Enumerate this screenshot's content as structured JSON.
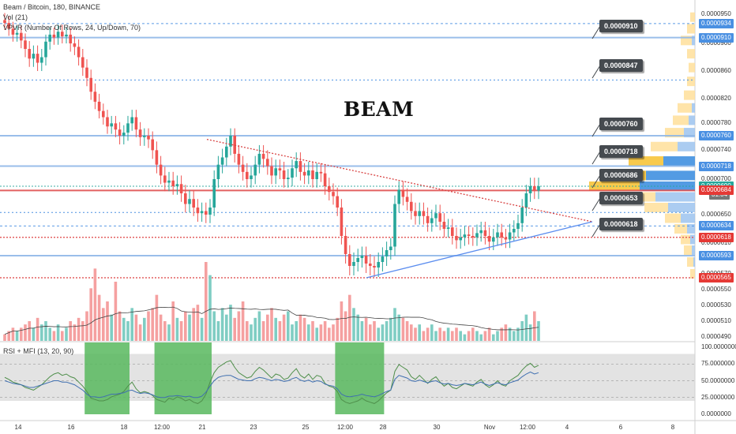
{
  "header": {
    "title": "Beam / Bitcoin, 180, BINANCE",
    "vol": "Vol (21)",
    "vpvr": "VPVR (Number Of Rows, 24, Up/Down, 70)",
    "rsi": "RSI + MFI (13, 20, 90)",
    "watermark": "BEAM",
    "price_clock": "31:04"
  },
  "colors": {
    "bull": "#26a69a",
    "bear": "#ef5350",
    "support_blue": "#90b8e8",
    "resistance_red": "#e05050",
    "trendline_blue": "#5b8def",
    "trendline_red": "#d84343",
    "rsi_band": "#d0d0d0",
    "oversold_zone": "#58b95e",
    "callout_bg": "#454a4f"
  },
  "chart_data": {
    "type": "candlestick",
    "price_axis": {
      "min": 4.9e-05,
      "max": 9.5e-05,
      "tick_labels": [
        "0.0000950",
        "0.0000900",
        "0.0000860",
        "0.0000820",
        "0.0000780",
        "0.0000740",
        "0.0000700",
        "0.0000650",
        "0.0000610",
        "0.0000570",
        "0.0000550",
        "0.0000530",
        "0.0000510",
        "0.0000490"
      ]
    },
    "time_axis": {
      "tick_labels": [
        "14",
        "16",
        "18",
        "12:00",
        "21",
        "23",
        "25",
        "12:00",
        "28",
        "30",
        "Nov",
        "12:00",
        "4",
        "6",
        "8"
      ]
    },
    "price_levels": [
      {
        "price": 9.34e-05,
        "label": "0.0000934",
        "kind": "support",
        "tag_color": "#4a90e2"
      },
      {
        "price": 9.1e-05,
        "label": "0.0000910",
        "kind": "support",
        "tag_color": "#4a90e2"
      },
      {
        "price": 7.6e-05,
        "label": "0.0000760",
        "kind": "support",
        "tag_color": "#4a90e2"
      },
      {
        "price": 7.18e-05,
        "label": "0.0000718",
        "kind": "support",
        "tag_color": "#4a90e2"
      },
      {
        "price": 6.9e-05,
        "label": "0.0000690",
        "kind": "current",
        "tag_color": "#26a69a"
      },
      {
        "price": 6.84e-05,
        "label": "0.0000684",
        "kind": "resistance",
        "tag_color": "#e53935"
      },
      {
        "price": 6.34e-05,
        "label": "0.0000634",
        "kind": "support",
        "tag_color": "#4a90e2"
      },
      {
        "price": 6.18e-05,
        "label": "0.0000618",
        "kind": "resistance",
        "tag_color": "#e53935"
      },
      {
        "price": 5.93e-05,
        "label": "0.0000593",
        "kind": "support",
        "tag_color": "#4a90e2"
      },
      {
        "price": 5.65e-05,
        "label": "0.0000565",
        "kind": "resistance",
        "tag_color": "#e53935"
      }
    ],
    "callouts": [
      "0.0000910",
      "0.0000847",
      "0.0000760",
      "0.0000718",
      "0.0000686",
      "0.0000653",
      "0.0000618"
    ],
    "candles_close": [
      9.35e-05,
      9.25e-05,
      9.15e-05,
      9.18e-05,
      9.05e-05,
      8.92e-05,
      8.78e-05,
      8.85e-05,
      8.72e-05,
      8.8e-05,
      9.03e-05,
      9.15e-05,
      9.1e-05,
      9.2e-05,
      9.12e-05,
      9.15e-05,
      9e-05,
      8.95e-05,
      8.8e-05,
      8.65e-05,
      8.5e-05,
      8.3e-05,
      8.15e-05,
      8e-05,
      7.9e-05,
      7.75e-05,
      7.8e-05,
      7.7e-05,
      7.6e-05,
      7.65e-05,
      7.8e-05,
      7.9e-05,
      7.7e-05,
      7.58e-05,
      7.6e-05,
      7.55e-05,
      7.4e-05,
      7.2e-05,
      7.05e-05,
      6.95e-05,
      6.98e-05,
      6.9e-05,
      6.93e-05,
      6.8e-05,
      6.65e-05,
      6.72e-05,
      6.6e-05,
      6.52e-05,
      6.55e-05,
      6.5e-05,
      6.6e-05,
      7e-05,
      7.2e-05,
      7.3e-05,
      7.45e-05,
      7.6e-05,
      7.35e-05,
      7.2e-05,
      7.1e-05,
      7e-05,
      7.05e-05,
      7.2e-05,
      7.35e-05,
      7.28e-05,
      7.18e-05,
      7.05e-05,
      7.15e-05,
      7.12e-05,
      7e-05,
      7.02e-05,
      7.15e-05,
      7.25e-05,
      7.1e-05,
      7.05e-05,
      7.12e-05,
      7e-05,
      7.1e-05,
      7.08e-05,
      6.9e-05,
      6.82e-05,
      6.76e-05,
      6.6e-05,
      6.2e-05,
      5.95e-05,
      5.8e-05,
      5.85e-05,
      5.9e-05,
      5.93e-05,
      5.83e-05,
      5.8e-05,
      5.78e-05,
      5.85e-05,
      5.92e-05,
      6e-05,
      6.05e-05,
      6.65e-05,
      6.85e-05,
      6.75e-05,
      6.68e-05,
      6.55e-05,
      6.48e-05,
      6.55e-05,
      6.48e-05,
      6.38e-05,
      6.45e-05,
      6.52e-05,
      6.4e-05,
      6.3e-05,
      6.32e-05,
      6.2e-05,
      6.14e-05,
      6.18e-05,
      6.22e-05,
      6.2e-05,
      6.18e-05,
      6.24e-05,
      6.28e-05,
      6.2e-05,
      6.12e-05,
      6.18e-05,
      6.25e-05,
      6.18e-05,
      6.15e-05,
      6.25e-05,
      6.3e-05,
      6.38e-05,
      6.6e-05,
      6.8e-05,
      6.9e-05,
      6.84e-05,
      6.9e-05
    ],
    "candles_open_first": 9.4e-05,
    "volume": [
      2,
      3,
      4,
      3,
      4,
      5,
      6,
      4,
      7,
      5,
      6,
      4,
      3,
      5,
      3,
      4,
      6,
      5,
      7,
      6,
      9,
      16,
      22,
      14,
      10,
      12,
      8,
      18,
      9,
      7,
      6,
      10,
      8,
      5,
      7,
      9,
      10,
      14,
      8,
      6,
      5,
      12,
      7,
      6,
      9,
      8,
      10,
      11,
      7,
      24,
      20,
      9,
      6,
      10,
      8,
      11,
      7,
      9,
      12,
      6,
      5,
      7,
      9,
      6,
      8,
      10,
      7,
      6,
      8,
      9,
      5,
      6,
      8,
      7,
      5,
      6,
      4,
      5,
      6,
      4,
      5,
      7,
      12,
      9,
      14,
      10,
      8,
      6,
      7,
      5,
      6,
      4,
      5,
      6,
      7,
      10,
      8,
      7,
      6,
      5,
      4,
      5,
      3,
      4,
      5,
      3,
      4,
      3,
      4,
      3,
      4,
      3,
      2,
      3,
      4,
      3,
      2,
      3,
      4,
      2,
      3,
      4,
      5,
      4,
      3,
      4,
      6,
      8,
      5,
      9,
      6
    ],
    "rsi": [
      55,
      52,
      48,
      46,
      44,
      40,
      38,
      36,
      40,
      44,
      50,
      56,
      60,
      62,
      58,
      60,
      56,
      54,
      48,
      42,
      34,
      24,
      22,
      20,
      20,
      22,
      26,
      28,
      30,
      34,
      42,
      48,
      38,
      32,
      34,
      32,
      28,
      22,
      20,
      18,
      24,
      22,
      26,
      24,
      20,
      22,
      18,
      16,
      20,
      30,
      48,
      62,
      70,
      74,
      78,
      80,
      70,
      62,
      58,
      54,
      56,
      64,
      70,
      66,
      60,
      54,
      60,
      58,
      52,
      54,
      62,
      68,
      58,
      54,
      60,
      52,
      58,
      56,
      46,
      42,
      40,
      34,
      22,
      18,
      16,
      18,
      20,
      24,
      20,
      18,
      16,
      20,
      26,
      32,
      36,
      64,
      74,
      70,
      66,
      56,
      52,
      58,
      52,
      46,
      52,
      56,
      48,
      42,
      46,
      40,
      38,
      42,
      46,
      44,
      42,
      48,
      52,
      44,
      40,
      44,
      50,
      44,
      42,
      50,
      54,
      58,
      66,
      72,
      76,
      70,
      73
    ],
    "mfi": [
      50,
      48,
      46,
      45,
      44,
      42,
      40,
      40,
      42,
      44,
      46,
      48,
      50,
      50,
      48,
      48,
      46,
      44,
      40,
      36,
      30,
      26,
      26,
      25,
      26,
      28,
      30,
      30,
      31,
      32,
      35,
      36,
      33,
      31,
      32,
      31,
      29,
      26,
      25,
      25,
      27,
      27,
      28,
      27,
      26,
      27,
      25,
      25,
      27,
      33,
      42,
      50,
      55,
      57,
      58,
      58,
      55,
      52,
      51,
      50,
      50,
      53,
      55,
      54,
      52,
      50,
      52,
      51,
      49,
      50,
      53,
      55,
      51,
      49,
      51,
      48,
      50,
      49,
      45,
      43,
      42,
      38,
      30,
      27,
      26,
      27,
      28,
      30,
      28,
      27,
      26,
      28,
      31,
      34,
      36,
      52,
      58,
      56,
      54,
      50,
      49,
      51,
      49,
      47,
      49,
      50,
      47,
      45,
      46,
      44,
      43,
      44,
      46,
      45,
      44,
      46,
      48,
      45,
      43,
      45,
      47,
      45,
      44,
      47,
      49,
      51,
      56,
      60,
      63,
      60,
      62
    ],
    "rsi_axis": {
      "min": 0,
      "max": 100,
      "tick_labels": [
        "100.0000000",
        "75.0000000",
        "50.0000000",
        "25.0000000",
        "0.0000000"
      ],
      "bands": [
        20,
        90
      ]
    },
    "oversold_zones": [
      [
        21,
        30
      ],
      [
        38,
        50
      ],
      [
        82,
        92
      ]
    ]
  }
}
